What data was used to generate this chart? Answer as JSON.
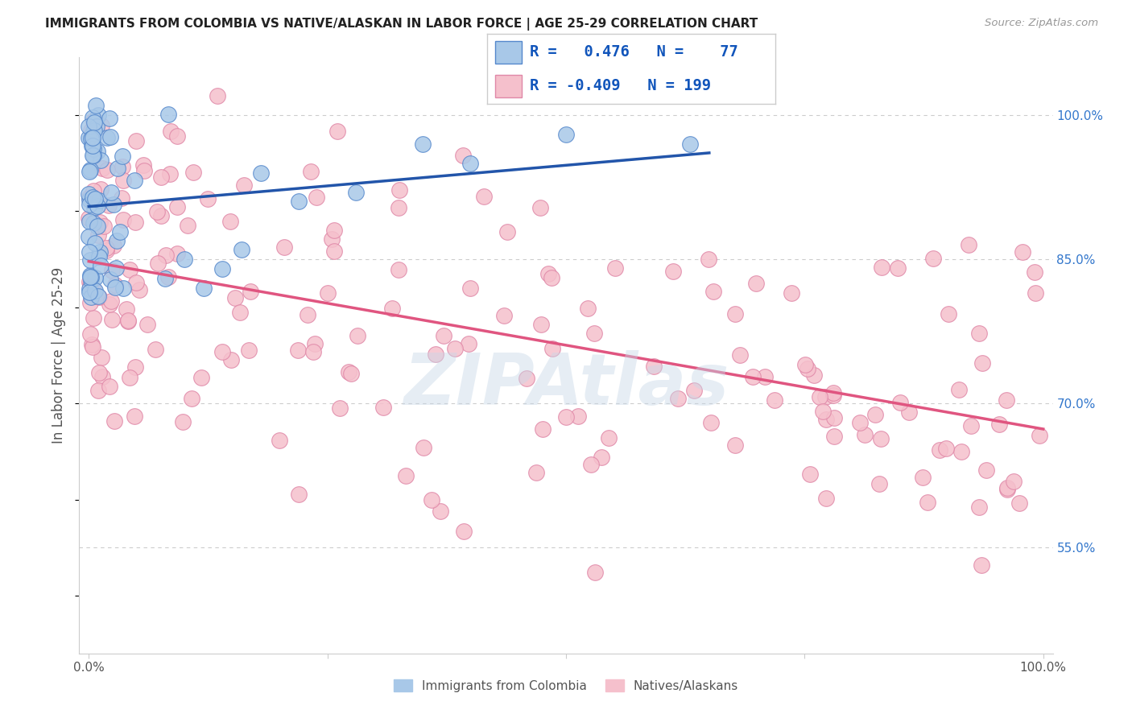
{
  "title": "IMMIGRANTS FROM COLOMBIA VS NATIVE/ALASKAN IN LABOR FORCE | AGE 25-29 CORRELATION CHART",
  "source": "Source: ZipAtlas.com",
  "ylabel": "In Labor Force | Age 25-29",
  "y_ticks": [
    0.55,
    0.7,
    0.85,
    1.0
  ],
  "y_tick_labels": [
    "55.0%",
    "70.0%",
    "85.0%",
    "100.0%"
  ],
  "xlim": [
    0.0,
    1.0
  ],
  "ylim": [
    0.44,
    1.06
  ],
  "blue_R": 0.476,
  "blue_N": 77,
  "pink_R": -0.409,
  "pink_N": 199,
  "blue_color": "#a8c8e8",
  "blue_edge_color": "#5588cc",
  "blue_line_color": "#2255aa",
  "pink_color": "#f5c0cc",
  "pink_edge_color": "#e088a8",
  "pink_line_color": "#e05580",
  "legend_label_blue": "Immigrants from Colombia",
  "legend_label_pink": "Natives/Alaskans",
  "watermark": "ZIPAtlas",
  "background_color": "#ffffff",
  "grid_color": "#cccccc"
}
